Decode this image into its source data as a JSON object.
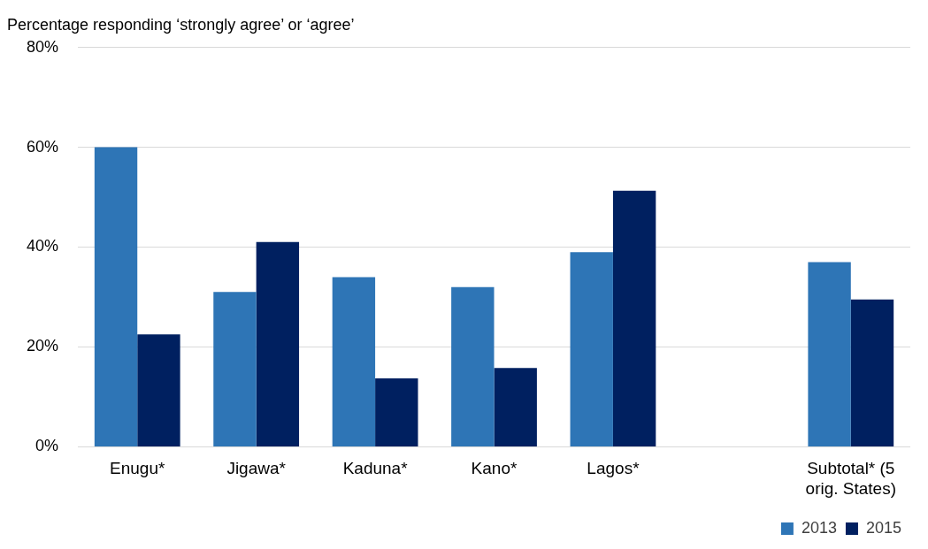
{
  "chart_data": {
    "type": "bar",
    "ylabel": "Percentage responding ‘strongly agree’ or ‘agree’",
    "categories": [
      "Enugu*",
      "Jigawa*",
      "Kaduna*",
      "Kano*",
      "Lagos*",
      null,
      "Subtotal* (5 orig. States)"
    ],
    "series": [
      {
        "name": "2013",
        "color": "#2e75b6",
        "values": [
          60,
          31,
          34,
          32,
          39,
          null,
          37
        ]
      },
      {
        "name": "2015",
        "color": "#002060",
        "values": [
          22.5,
          41,
          13.7,
          15.8,
          51.3,
          null,
          29.5
        ]
      }
    ],
    "ylim": [
      0,
      80
    ],
    "yticks": [
      {
        "value": 0,
        "label": "0%"
      },
      {
        "value": 20,
        "label": "20%"
      },
      {
        "value": 40,
        "label": "40%"
      },
      {
        "value": 60,
        "label": "60%"
      },
      {
        "value": 80,
        "label": "80%"
      }
    ],
    "grid": "y",
    "legend": "bottom right"
  }
}
